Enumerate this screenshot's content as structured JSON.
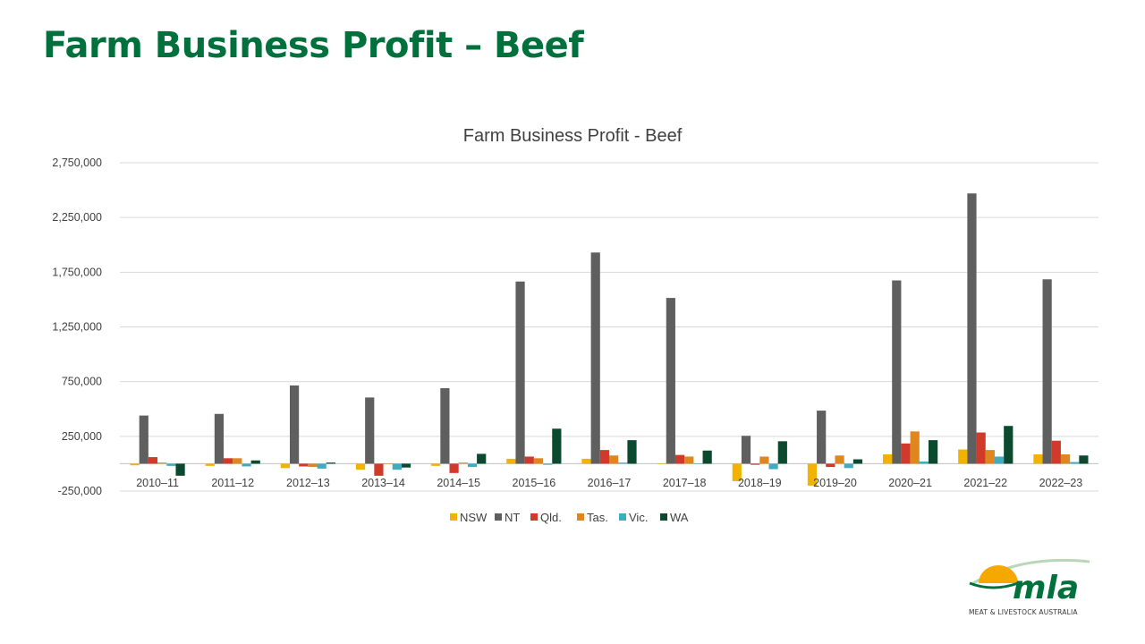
{
  "slide": {
    "title": "Farm Business Profit – Beef"
  },
  "logo": {
    "text": "mla",
    "subtitle": "MEAT & LIVESTOCK AUSTRALIA"
  },
  "colors": {
    "title": "#00703c",
    "NSW": "#f2b200",
    "NT": "#5f5f5f",
    "Qld.": "#d03a2a",
    "Tas.": "#e0861f",
    "Vic.": "#42acbf",
    "WA": "#0b4a2f"
  },
  "chart_data": {
    "type": "bar",
    "title": "Farm Business Profit - Beef",
    "xlabel": "",
    "ylabel": "",
    "ylim": [
      -250000,
      2750000
    ],
    "yticks": [
      -250000,
      250000,
      750000,
      1250000,
      1750000,
      2250000,
      2750000
    ],
    "ytick_labels": [
      "-250,000",
      "250,000",
      "750,000",
      "1,250,000",
      "1,750,000",
      "2,250,000",
      "2,750,000"
    ],
    "grid": true,
    "legend_position": "bottom",
    "categories": [
      "2010–11",
      "2011–12",
      "2012–13",
      "2013–14",
      "2014–15",
      "2015–16",
      "2016–17",
      "2017–18",
      "2018–19",
      "2019–20",
      "2020–21",
      "2021–22",
      "2022–23"
    ],
    "series": [
      {
        "name": "NSW",
        "values": [
          -15000,
          -20000,
          -40000,
          -55000,
          -20000,
          45000,
          45000,
          0,
          -160000,
          -200000,
          85000,
          130000,
          85000
        ]
      },
      {
        "name": "NT",
        "values": [
          440000,
          455000,
          715000,
          605000,
          690000,
          1665000,
          1930000,
          1515000,
          255000,
          485000,
          1675000,
          2470000,
          1685000
        ]
      },
      {
        "name": "Qld.",
        "values": [
          60000,
          50000,
          -25000,
          -110000,
          -85000,
          65000,
          125000,
          80000,
          -10000,
          -30000,
          185000,
          285000,
          210000
        ]
      },
      {
        "name": "Tas.",
        "values": [
          10000,
          50000,
          -30000,
          0,
          10000,
          50000,
          75000,
          65000,
          65000,
          75000,
          295000,
          125000,
          85000
        ]
      },
      {
        "name": "Vic.",
        "values": [
          -20000,
          -25000,
          -45000,
          -55000,
          -30000,
          -10000,
          10000,
          0,
          -50000,
          -40000,
          20000,
          65000,
          15000
        ]
      },
      {
        "name": "WA",
        "values": [
          -110000,
          30000,
          10000,
          -35000,
          90000,
          320000,
          215000,
          120000,
          205000,
          40000,
          215000,
          345000,
          75000
        ]
      }
    ]
  }
}
